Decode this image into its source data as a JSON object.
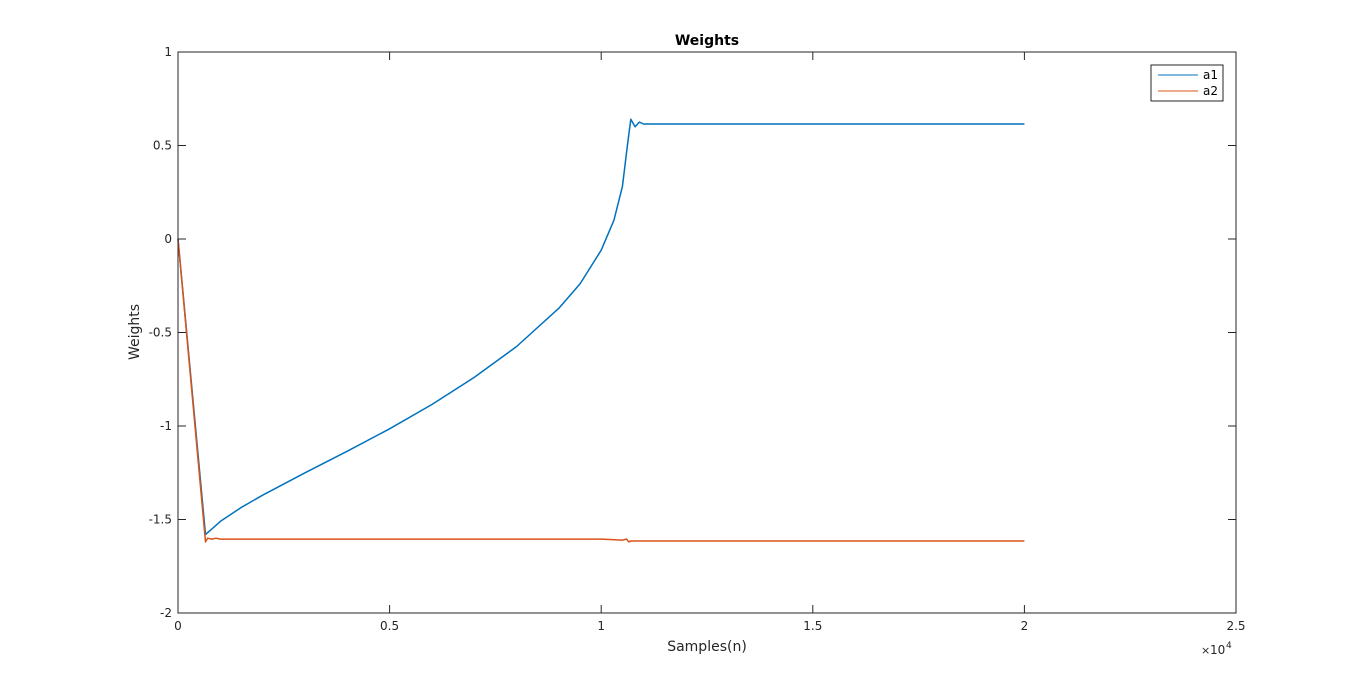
{
  "chart_data": {
    "type": "line",
    "title": "Weights",
    "xlabel": "Samples(n)",
    "ylabel": "Weights",
    "xlim": [
      0,
      25000
    ],
    "ylim": [
      -2,
      1
    ],
    "x_ticks": [
      0,
      5000,
      10000,
      15000,
      20000,
      25000
    ],
    "x_tick_labels": [
      "0",
      "0.5",
      "1",
      "1.5",
      "2",
      "2.5"
    ],
    "x_exponent_multiplier": "×",
    "x_exponent_base": "10",
    "x_exponent_power": "4",
    "y_ticks": [
      -2,
      -1.5,
      -1,
      -0.5,
      0,
      0.5,
      1
    ],
    "y_tick_labels": [
      "-2",
      "-1.5",
      "-1",
      "-0.5",
      "0",
      "0.5",
      "1"
    ],
    "grid": false,
    "legend_position": "top-right",
    "series": [
      {
        "name": "a1",
        "color": "#0072BD",
        "x": [
          0,
          650,
          800,
          1000,
          1500,
          2000,
          3000,
          4000,
          5000,
          6000,
          7000,
          8000,
          9000,
          9500,
          10000,
          10300,
          10500,
          10620,
          10700,
          10800,
          10900,
          11000,
          12000,
          15000,
          20000
        ],
        "y": [
          0,
          -1.58,
          -1.55,
          -1.51,
          -1.435,
          -1.37,
          -1.25,
          -1.135,
          -1.015,
          -0.885,
          -0.74,
          -0.575,
          -0.37,
          -0.24,
          -0.06,
          0.1,
          0.28,
          0.5,
          0.64,
          0.6,
          0.625,
          0.615,
          0.615,
          0.615,
          0.615
        ]
      },
      {
        "name": "a2",
        "color": "#D95319",
        "x": [
          0,
          650,
          700,
          800,
          900,
          1000,
          1100,
          1500,
          5000,
          10000,
          10500,
          10600,
          10650,
          10700,
          11000,
          15000,
          20000
        ],
        "y": [
          0,
          -1.62,
          -1.6,
          -1.605,
          -1.6,
          -1.605,
          -1.605,
          -1.605,
          -1.605,
          -1.605,
          -1.61,
          -1.605,
          -1.62,
          -1.615,
          -1.615,
          -1.615,
          -1.615
        ]
      }
    ]
  }
}
